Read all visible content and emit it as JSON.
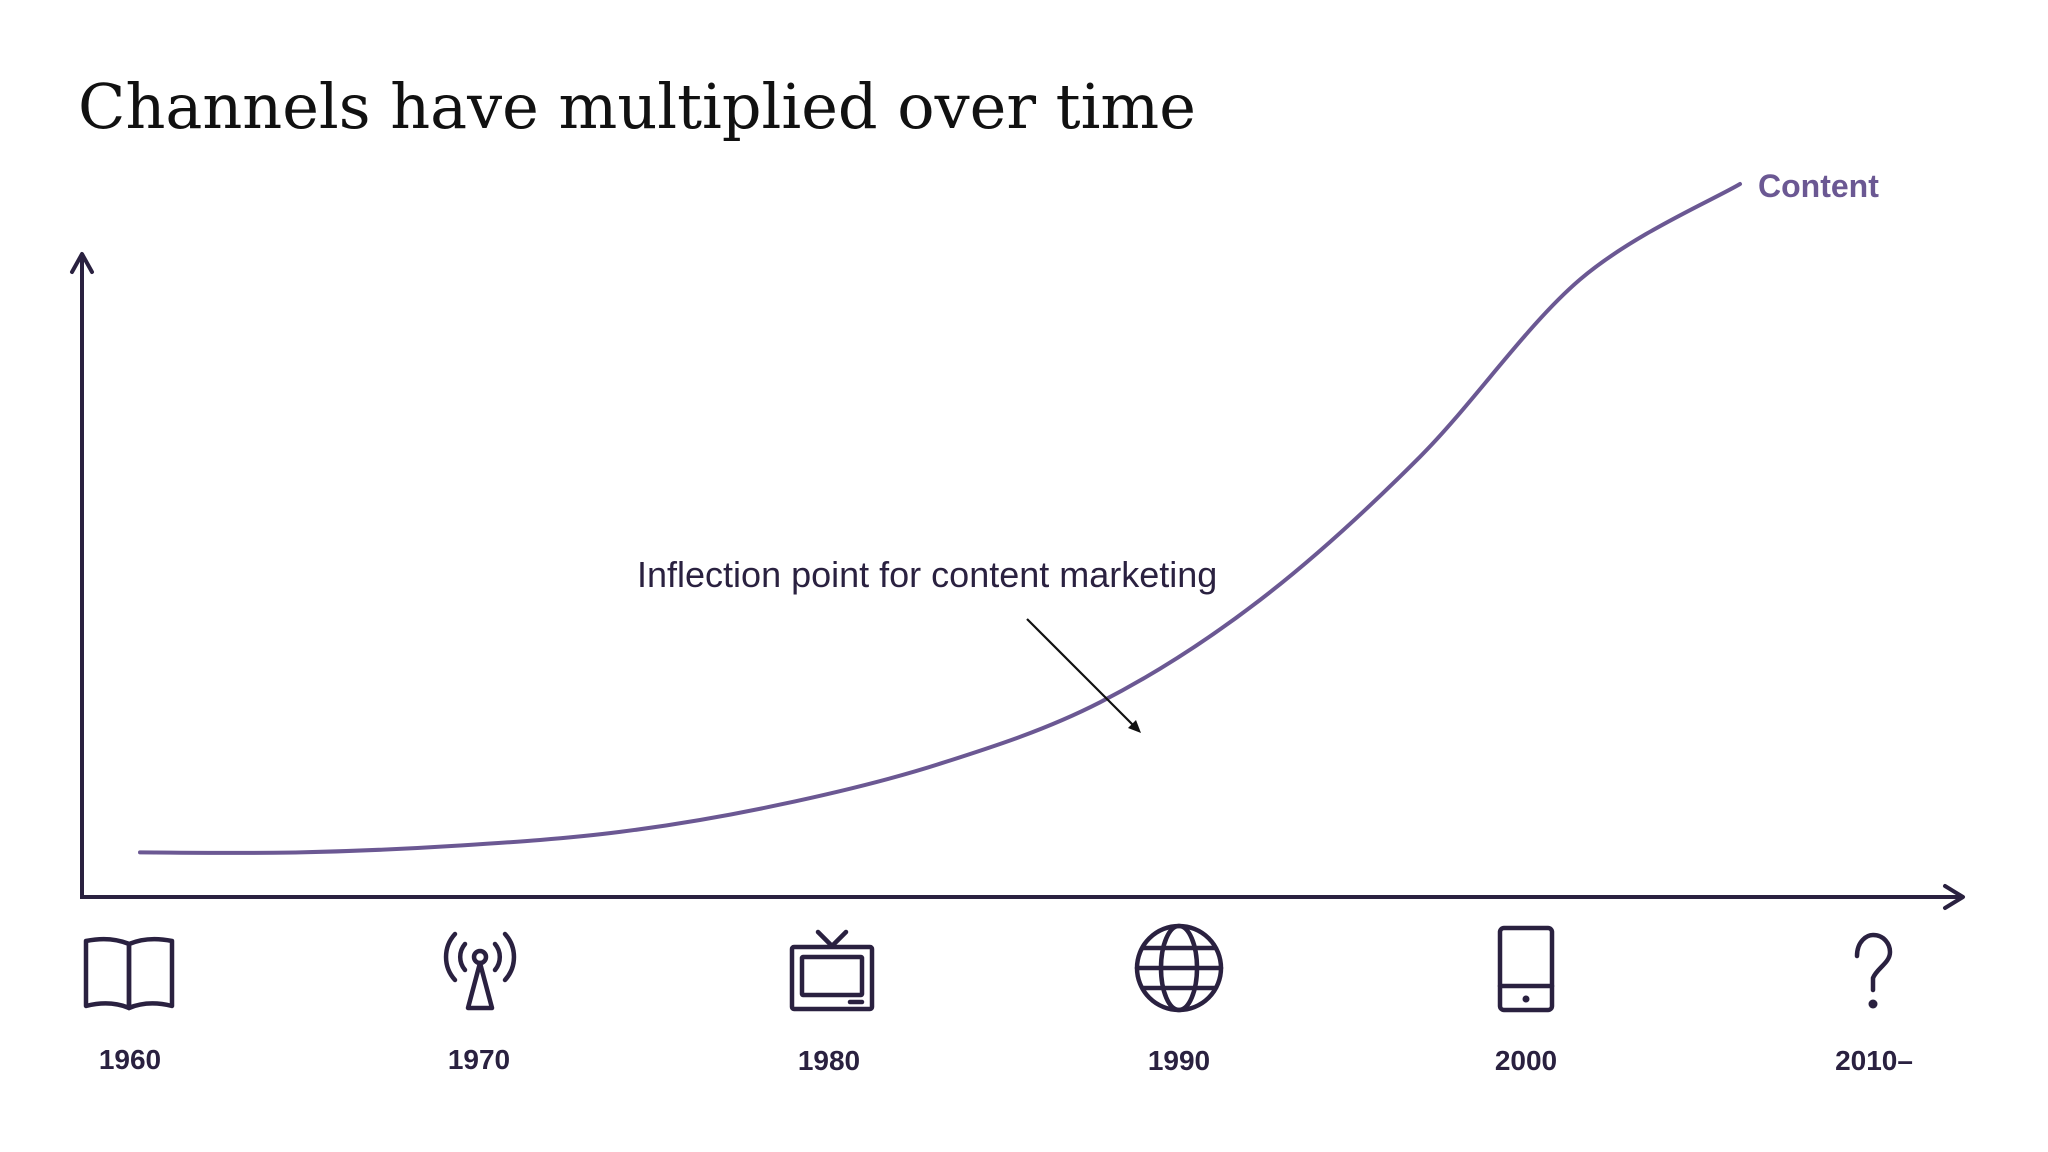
{
  "title": "Channels have multiplied over time",
  "colors": {
    "axis": "#2a2140",
    "curve": "#6b5893",
    "text": "#111111"
  },
  "chart_data": {
    "type": "line",
    "title": "Channels have multiplied over time",
    "xlabel": "",
    "ylabel": "",
    "x_range": [
      1960,
      2010
    ],
    "y_range": [
      0,
      100
    ],
    "series": [
      {
        "name": "Content",
        "x": [
          1960,
          1965,
          1970,
          1975,
          1980,
          1985,
          1990,
          1995,
          2000,
          2005,
          2010
        ],
        "y": [
          2,
          2,
          3,
          5,
          9,
          15,
          24,
          39,
          60,
          86,
          100
        ]
      }
    ],
    "annotation": {
      "text": "Inflection point for content marketing",
      "x": 1991,
      "y": 26
    },
    "ticks": [
      {
        "label": "1960",
        "icon": "book-icon"
      },
      {
        "label": "1970",
        "icon": "radio-tower-icon"
      },
      {
        "label": "1980",
        "icon": "television-icon"
      },
      {
        "label": "1990",
        "icon": "globe-icon"
      },
      {
        "label": "2000",
        "icon": "tablet-icon"
      },
      {
        "label": "2010–",
        "icon": "question-mark-icon"
      }
    ],
    "grid": false
  }
}
